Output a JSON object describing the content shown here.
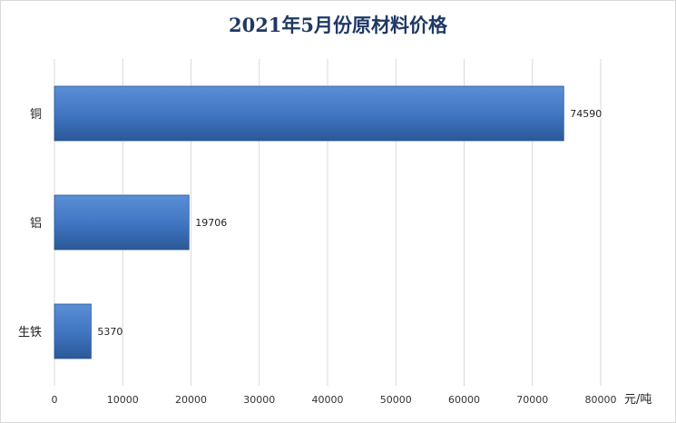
{
  "chart_data": {
    "type": "bar",
    "orientation": "horizontal",
    "title": "2021年5月份原材料价格",
    "categories": [
      "铜",
      "铝",
      "生铁"
    ],
    "values": [
      74590,
      19706,
      5370
    ],
    "data_labels": [
      "74590",
      "19706",
      "5370"
    ],
    "xlim": [
      0,
      80000
    ],
    "xticks": [
      0,
      10000,
      20000,
      30000,
      40000,
      50000,
      60000,
      70000,
      80000
    ],
    "xtick_labels": [
      "0",
      "10000",
      "20000",
      "30000",
      "40000",
      "50000",
      "60000",
      "70000",
      "80000"
    ],
    "xlabel": "元/吨",
    "grid": "vertical",
    "colors": {
      "bar": "#4a7fc8",
      "bar_dark": "#2e5ea3",
      "grid": "#d9d9d9",
      "title": "#1f3864"
    }
  }
}
